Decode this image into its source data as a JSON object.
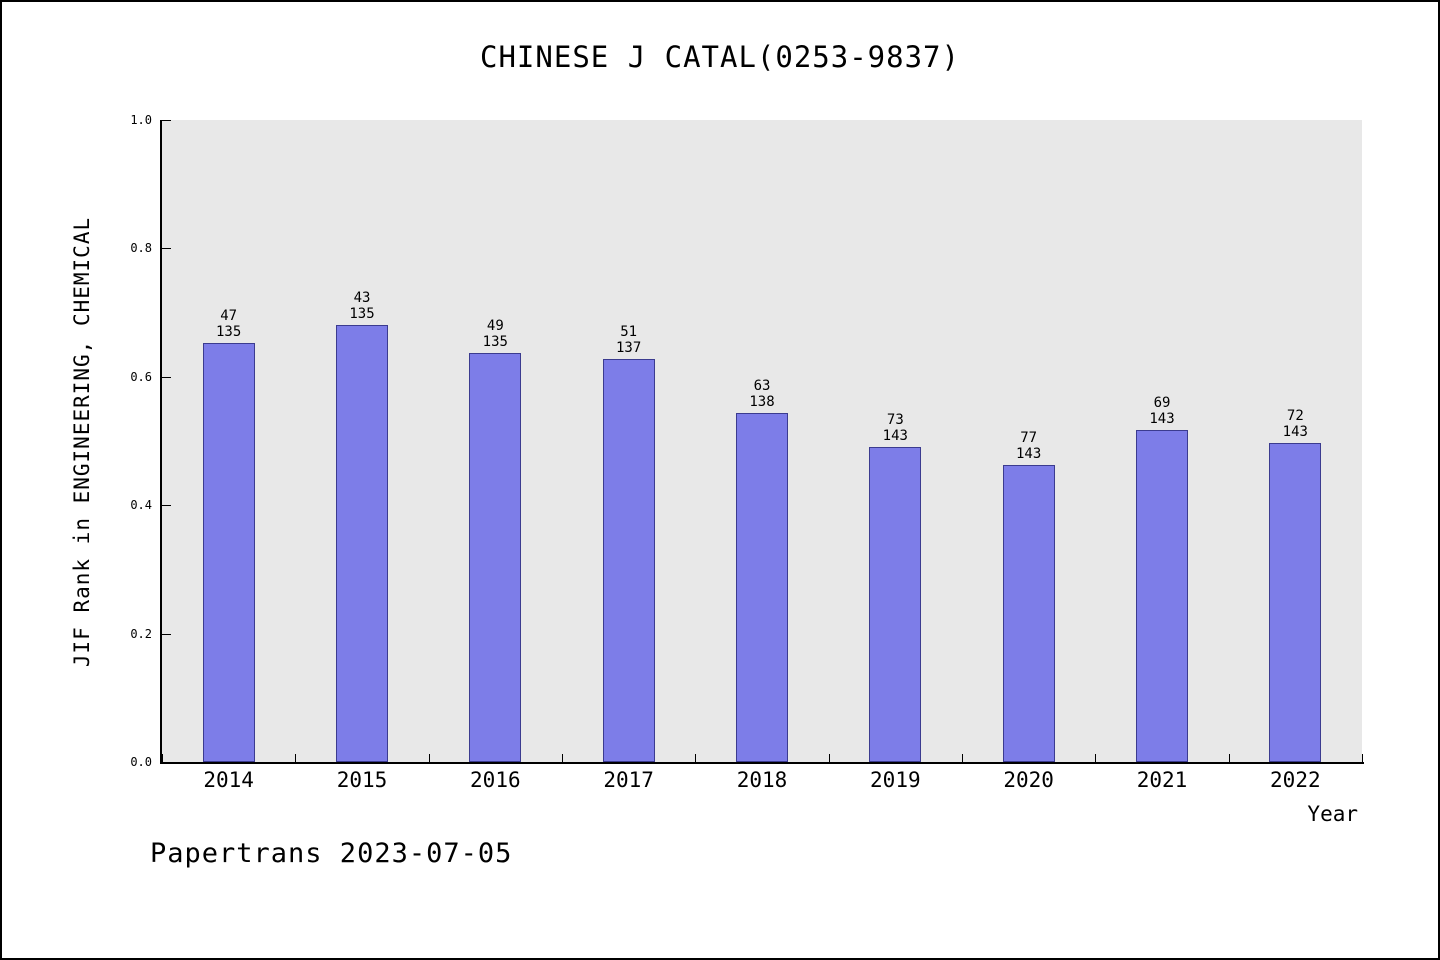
{
  "title": "CHINESE J CATAL(0253-9837)",
  "footer": "Papertrans 2023-07-05",
  "chart_data": {
    "type": "bar",
    "title": "CHINESE J CATAL(0253-9837)",
    "xlabel": "Year",
    "ylabel": "JIF Rank in ENGINEERING, CHEMICAL",
    "ylim": [
      0.0,
      1.0
    ],
    "yticks": [
      "0.0",
      "0.2",
      "0.4",
      "0.6",
      "0.8",
      "1.0"
    ],
    "grid": "off",
    "legend": "none",
    "plot_bg": "#e8e8e8",
    "bar_color": "#7d7de8",
    "categories": [
      "2014",
      "2015",
      "2016",
      "2017",
      "2018",
      "2019",
      "2020",
      "2021",
      "2022"
    ],
    "bars": [
      {
        "year": "2014",
        "rank": 47,
        "total": 135,
        "value": 0.652
      },
      {
        "year": "2015",
        "rank": 43,
        "total": 135,
        "value": 0.681
      },
      {
        "year": "2016",
        "rank": 49,
        "total": 135,
        "value": 0.637
      },
      {
        "year": "2017",
        "rank": 51,
        "total": 137,
        "value": 0.628
      },
      {
        "year": "2018",
        "rank": 63,
        "total": 138,
        "value": 0.543
      },
      {
        "year": "2019",
        "rank": 73,
        "total": 143,
        "value": 0.49
      },
      {
        "year": "2020",
        "rank": 77,
        "total": 143,
        "value": 0.462
      },
      {
        "year": "2021",
        "rank": 69,
        "total": 143,
        "value": 0.517
      },
      {
        "year": "2022",
        "rank": 72,
        "total": 143,
        "value": 0.497
      }
    ]
  }
}
